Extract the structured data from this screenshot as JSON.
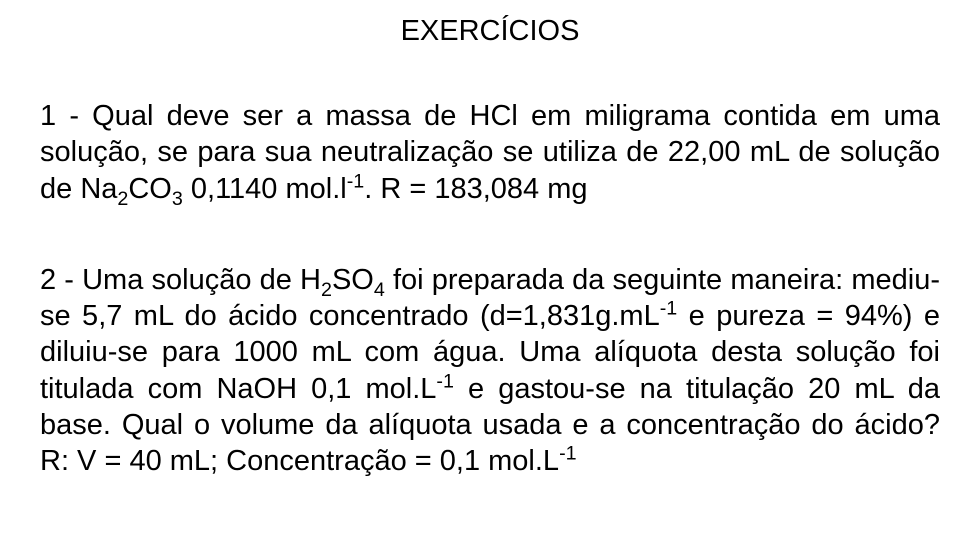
{
  "title": "EXERCÍCIOS",
  "exercise1": {
    "prefix": "1 - Qual deve ser a massa de HCl em miligrama contida em uma solução, se para sua neutralização se utiliza de 22,00 mL de solução de Na",
    "sub1": "2",
    "mid1": "CO",
    "sub2": "3",
    "mid2": " 0,1140 mol.l",
    "sup1": "-1",
    "answer": ".     R = 183,084 mg"
  },
  "exercise2": {
    "prefix": "2 - Uma solução de H",
    "sub1": "2",
    "mid1": "SO",
    "sub2": "4",
    "mid2": " foi preparada da seguinte maneira: mediu-se 5,7 mL do ácido concentrado (d=1,831g.mL",
    "sup1": "-1",
    "mid3": " e pureza = 94%) e diluiu-se para 1000 mL com água. Uma alíquota desta solução foi titulada com NaOH 0,1 mol.L",
    "sup2": "-1",
    "mid4": " e gastou-se na titulação 20 mL da base. Qual o volume da alíquota usada e a concentração do ácido? R: V = 40 mL; Concentração = 0,1 mol.L",
    "sup3": "-1"
  },
  "styling": {
    "background_color": "#ffffff",
    "text_color": "#000000",
    "font_family": "Arial",
    "title_fontsize": 29,
    "body_fontsize": 29,
    "line_height": 1.25,
    "text_align_body": "justify",
    "text_align_title": "center"
  }
}
